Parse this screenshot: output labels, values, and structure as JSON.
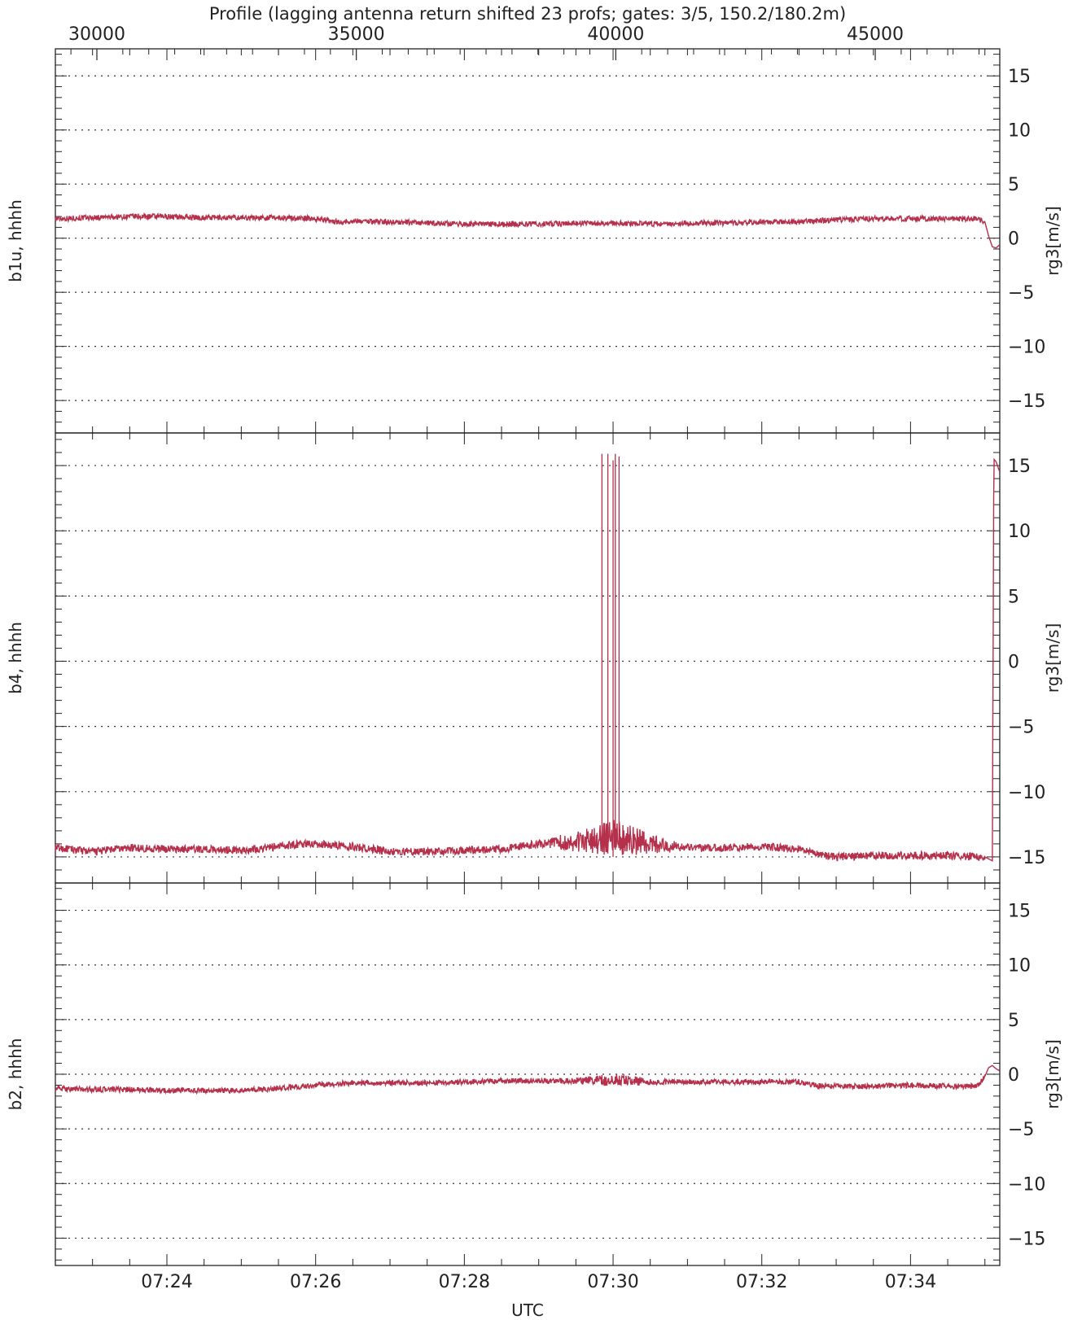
{
  "colors": {
    "series": "#b5304b",
    "axis": "#222222",
    "grid": "#333333",
    "background": "#ffffff"
  },
  "chart_data": {
    "type": "line",
    "title": "Profile (lagging antenna return shifted 23 profs; gates: 3/5, 150.2/180.2m)",
    "top_axis": {
      "ticks": [
        30000,
        35000,
        40000,
        45000
      ],
      "range": [
        29200,
        47400
      ]
    },
    "x_axis": {
      "label": "UTC",
      "tick_labels": [
        "07:24",
        "07:26",
        "07:28",
        "07:30",
        "07:32",
        "07:34"
      ],
      "tick_minutes": [
        24,
        26,
        28,
        30,
        32,
        34
      ],
      "range_minutes": [
        22.5,
        35.2
      ]
    },
    "grid": true,
    "panels": [
      {
        "left_label": "b1u, hhhh",
        "right_label": "rg3[m/s]",
        "ylim": [
          -18,
          17.5
        ],
        "yticks": [
          15,
          10,
          5,
          0,
          -5,
          -10,
          -15
        ],
        "ytick_labels": [
          "15",
          "10",
          "5",
          "0",
          "−5",
          "−10",
          "−15"
        ],
        "series": [
          {
            "x": [
              22.5,
              23.0,
              23.5,
              24.0,
              24.5,
              25.0,
              25.5,
              26.0,
              26.3,
              26.6,
              27.0,
              27.5,
              28.0,
              28.5,
              29.0,
              29.5,
              30.0,
              30.5,
              31.0,
              31.5,
              32.0,
              32.5,
              33.0,
              33.5,
              34.0,
              34.5,
              34.9,
              35.0,
              35.05,
              35.1,
              35.15,
              35.2
            ],
            "y": [
              1.8,
              1.9,
              2.0,
              2.0,
              1.9,
              1.9,
              1.9,
              1.8,
              1.5,
              1.6,
              1.5,
              1.4,
              1.3,
              1.3,
              1.3,
              1.4,
              1.4,
              1.3,
              1.4,
              1.4,
              1.5,
              1.5,
              1.7,
              1.8,
              1.8,
              1.8,
              1.8,
              1.5,
              0.2,
              -0.8,
              -0.9,
              -0.6
            ]
          }
        ],
        "noise": [
          [
            22.5,
            35.0,
            0.25
          ],
          [
            29.5,
            30.5,
            0.2
          ]
        ]
      },
      {
        "left_label": "b4, hhhh",
        "right_label": "rg3[m/s]",
        "ylim": [
          -17,
          17.5
        ],
        "yticks": [
          15,
          10,
          5,
          0,
          -5,
          -10,
          -15
        ],
        "ytick_labels": [
          "15",
          "10",
          "5",
          "0",
          "−5",
          "−10",
          "−15"
        ],
        "series": [
          {
            "x": [
              22.5,
              23.0,
              23.5,
              24.0,
              24.5,
              25.0,
              25.5,
              25.8,
              26.0,
              26.5,
              27.0,
              27.5,
              28.0,
              28.5,
              29.0,
              29.5,
              30.0,
              30.5,
              31.0,
              31.5,
              32.0,
              32.5,
              32.8,
              33.0,
              33.5,
              34.0,
              34.5,
              35.0,
              35.1,
              35.12,
              35.15,
              35.2
            ],
            "y": [
              -14.3,
              -14.6,
              -14.3,
              -14.4,
              -14.4,
              -14.5,
              -14.2,
              -14.0,
              -14.0,
              -14.2,
              -14.6,
              -14.6,
              -14.5,
              -14.4,
              -14.0,
              -13.8,
              -13.5,
              -14.0,
              -14.3,
              -14.3,
              -14.2,
              -14.4,
              -14.9,
              -15.0,
              -14.9,
              -14.9,
              -14.9,
              -15.0,
              -15.3,
              15.5,
              15.3,
              14.5
            ]
          }
        ],
        "noise": [
          [
            22.5,
            35.0,
            0.3
          ],
          [
            28.8,
            31.2,
            1.4
          ]
        ],
        "spikes": [
          {
            "x": 29.85,
            "y_from": -14.0,
            "y_to": 15.9
          },
          {
            "x": 29.93,
            "y_from": -14.0,
            "y_to": 15.9
          },
          {
            "x": 30.0,
            "y_from": -15.0,
            "y_to": 15.4
          },
          {
            "x": 30.03,
            "y_from": -14.0,
            "y_to": 15.9
          },
          {
            "x": 30.08,
            "y_from": -14.0,
            "y_to": 15.7
          }
        ]
      },
      {
        "left_label": "b2, hhhh",
        "right_label": "rg3[m/s]",
        "ylim": [
          -17.5,
          17.5
        ],
        "yticks": [
          15,
          10,
          5,
          0,
          -5,
          -10,
          -15
        ],
        "ytick_labels": [
          "15",
          "10",
          "5",
          "0",
          "−5",
          "−10",
          "−15"
        ],
        "series": [
          {
            "x": [
              22.5,
              23.0,
              23.5,
              24.0,
              24.5,
              25.0,
              25.5,
              26.0,
              26.5,
              27.0,
              27.5,
              28.0,
              28.5,
              29.0,
              29.5,
              30.0,
              30.5,
              31.0,
              31.5,
              32.0,
              32.5,
              32.8,
              33.0,
              33.5,
              34.0,
              34.5,
              34.9,
              35.0,
              35.05,
              35.1,
              35.15,
              35.2
            ],
            "y": [
              -1.3,
              -1.4,
              -1.4,
              -1.5,
              -1.5,
              -1.5,
              -1.3,
              -1.0,
              -0.8,
              -0.8,
              -0.8,
              -0.7,
              -0.6,
              -0.6,
              -0.6,
              -0.5,
              -0.7,
              -0.7,
              -0.7,
              -0.7,
              -0.7,
              -1.1,
              -1.1,
              -1.1,
              -1.0,
              -1.1,
              -1.1,
              -0.2,
              0.6,
              0.8,
              0.5,
              0.3
            ]
          }
        ],
        "noise": [
          [
            22.5,
            35.0,
            0.25
          ],
          [
            29.0,
            31.0,
            0.6
          ]
        ]
      }
    ]
  }
}
